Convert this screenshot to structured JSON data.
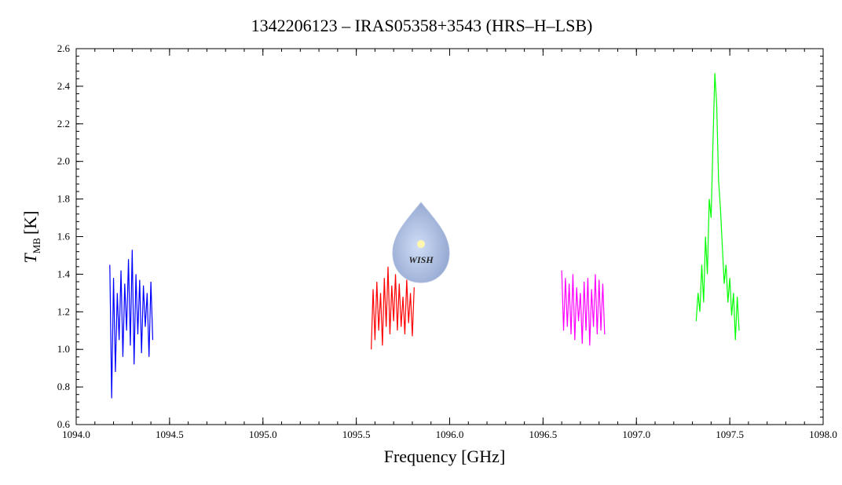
{
  "chart_data": {
    "type": "line",
    "title": "1342206123 – IRAS05358+3543 (HRS–H–LSB)",
    "xlabel": "Frequency [GHz]",
    "ylabel": {
      "symbol": "T",
      "subscript": "MB",
      "unit": "[K]"
    },
    "logo_text": "WISH",
    "xlim": [
      1094,
      1098
    ],
    "xticks": [
      {
        "value": 1094,
        "label": "1094.0"
      },
      1094.5,
      {
        "value": 1095,
        "label": "1095.0"
      },
      1095.5,
      {
        "value": 1096,
        "label": "1096.0"
      },
      1096.5,
      {
        "value": 1097,
        "label": "1097.0"
      },
      1097.5,
      {
        "value": 1098,
        "label": "1098.0"
      }
    ],
    "ylim": [
      0.6,
      2.6
    ],
    "yticks": [
      0.6,
      0.8,
      {
        "value": 1,
        "label": "1.0"
      },
      1.2,
      1.4,
      1.6,
      1.8,
      {
        "value": 2,
        "label": "2.0"
      },
      2.2,
      2.4,
      2.6
    ],
    "series": [
      {
        "color": "#0000ff",
        "x": [
          1094.18,
          1094.19,
          1094.2,
          1094.21,
          1094.22,
          1094.23,
          1094.24,
          1094.25,
          1094.26,
          1094.27,
          1094.28,
          1094.29,
          1094.3,
          1094.31,
          1094.32,
          1094.33,
          1094.34,
          1094.35,
          1094.36,
          1094.37,
          1094.38,
          1094.39,
          1094.4,
          1094.41
        ],
        "values": [
          1.45,
          0.74,
          1.38,
          0.88,
          1.3,
          1.05,
          1.42,
          0.96,
          1.35,
          1.1,
          1.48,
          1.02,
          1.53,
          0.92,
          1.4,
          1.08,
          1.37,
          0.98,
          1.34,
          1.12,
          1.3,
          0.96,
          1.36,
          1.05
        ]
      },
      {
        "color": "#ff0000",
        "x": [
          1095.58,
          1095.59,
          1095.6,
          1095.61,
          1095.62,
          1095.63,
          1095.64,
          1095.65,
          1095.66,
          1095.67,
          1095.68,
          1095.69,
          1095.7,
          1095.71,
          1095.72,
          1095.73,
          1095.74,
          1095.75,
          1095.76,
          1095.77,
          1095.78,
          1095.79,
          1095.8,
          1095.81
        ],
        "values": [
          1.0,
          1.32,
          1.05,
          1.36,
          1.1,
          1.3,
          1.02,
          1.38,
          1.12,
          1.44,
          1.08,
          1.34,
          1.15,
          1.4,
          1.1,
          1.35,
          1.12,
          1.28,
          1.08,
          1.37,
          1.14,
          1.3,
          1.07,
          1.33
        ]
      },
      {
        "color": "#ff00ff",
        "x": [
          1096.6,
          1096.61,
          1096.62,
          1096.63,
          1096.64,
          1096.65,
          1096.66,
          1096.67,
          1096.68,
          1096.69,
          1096.7,
          1096.71,
          1096.72,
          1096.73,
          1096.74,
          1096.75,
          1096.76,
          1096.77,
          1096.78,
          1096.79,
          1096.8,
          1096.81,
          1096.82,
          1096.83
        ],
        "values": [
          1.42,
          1.1,
          1.38,
          1.12,
          1.35,
          1.08,
          1.4,
          1.05,
          1.33,
          1.15,
          1.3,
          1.03,
          1.36,
          1.1,
          1.38,
          1.02,
          1.32,
          1.12,
          1.4,
          1.08,
          1.37,
          1.1,
          1.35,
          1.08
        ]
      },
      {
        "color": "#00ff00",
        "x": [
          1097.32,
          1097.33,
          1097.34,
          1097.35,
          1097.36,
          1097.37,
          1097.38,
          1097.39,
          1097.4,
          1097.41,
          1097.42,
          1097.43,
          1097.44,
          1097.45,
          1097.46,
          1097.47,
          1097.48,
          1097.49,
          1097.5,
          1097.51,
          1097.52,
          1097.53,
          1097.54,
          1097.55
        ],
        "values": [
          1.15,
          1.3,
          1.2,
          1.45,
          1.25,
          1.6,
          1.4,
          1.8,
          1.7,
          2.1,
          2.47,
          2.3,
          1.9,
          1.75,
          1.55,
          1.35,
          1.45,
          1.25,
          1.38,
          1.18,
          1.3,
          1.05,
          1.28,
          1.1
        ]
      }
    ]
  }
}
